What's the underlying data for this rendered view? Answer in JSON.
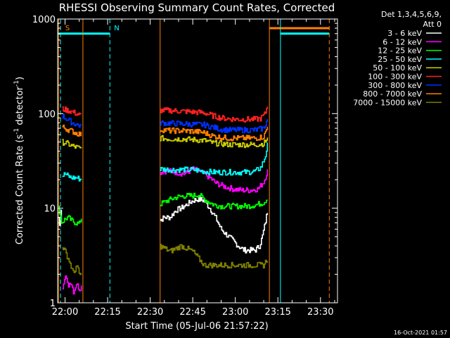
{
  "chart_data": {
    "type": "line",
    "title": "RHESSI Observing Summary Count Rates, Corrected",
    "xlabel": "Start Time (05-Jul-06 21:57:22)",
    "ylabel_main": "Corrected Count Rate (s",
    "ylabel_sup1": "-1",
    "ylabel_mid": " detector",
    "ylabel_sup2": "-1",
    "ylabel_end": ")",
    "y_scale": "log",
    "ylim": [
      1,
      1000
    ],
    "x_unit": "minutes since 22:00",
    "xlim": [
      -2.6,
      96
    ],
    "x_ticks": [
      {
        "value": 0,
        "label": "22:00"
      },
      {
        "value": 15,
        "label": "22:15"
      },
      {
        "value": 30,
        "label": "22:30"
      },
      {
        "value": 45,
        "label": "22:45"
      },
      {
        "value": 60,
        "label": "23:00"
      },
      {
        "value": 75,
        "label": "23:15"
      },
      {
        "value": 90,
        "label": "23:30"
      }
    ],
    "y_ticks": [
      {
        "value": 1,
        "label": "1"
      },
      {
        "value": 10,
        "label": "10"
      },
      {
        "value": 100,
        "label": "100"
      },
      {
        "value": 1000,
        "label": "1000"
      }
    ],
    "legend_header": [
      "Det 1,3,4,5,6,9,",
      "Att 0"
    ],
    "legend_position": "top-right, outside plot",
    "timestamp": "16-Oct-2021 01:57",
    "markers": [
      {
        "label": "S",
        "x": -1.4,
        "color": "#ff8000"
      },
      {
        "label": "N",
        "x": 15.8,
        "color": "#00ffff"
      }
    ],
    "vlines": [
      {
        "x": -2.3,
        "color": "#ff8000",
        "style": "solid"
      },
      {
        "x": -1.6,
        "color": "#00ffff",
        "style": "dashed"
      },
      {
        "x": 15.8,
        "color": "#00ffff",
        "style": "dashed"
      },
      {
        "x": 6.3,
        "color": "#ff8000",
        "style": "solid"
      },
      {
        "x": 33.5,
        "color": "#ff8000",
        "style": "solid"
      },
      {
        "x": 72.0,
        "color": "#ff8000",
        "style": "solid"
      },
      {
        "x": 75.9,
        "color": "#00ffff",
        "style": "solid"
      },
      {
        "x": 93.1,
        "color": "#ff8000",
        "style": "dashed"
      }
    ],
    "hbars": [
      {
        "x0": -2.6,
        "x1": 15.8,
        "y": 700,
        "color": "#00ffff"
      },
      {
        "x0": 75.9,
        "x1": 93.1,
        "y": 700,
        "color": "#00ffff"
      },
      {
        "x0": 72.0,
        "x1": 93.1,
        "y": 800,
        "color": "#ff8000"
      }
    ],
    "series": [
      {
        "name": "3 - 6 keV",
        "color": "#ffffff",
        "segments": [
          {
            "x": [
              -2.3,
              -1.8,
              -1.4,
              -1.0
            ],
            "y": [
              8,
              6,
              10,
              10
            ]
          },
          {
            "x": [
              33.5,
              35,
              37,
              39,
              41,
              43,
              45,
              47,
              49,
              51,
              53,
              55,
              57,
              59,
              61,
              63,
              65,
              67,
              68.5,
              69.5,
              70.5,
              71.5
            ],
            "y": [
              7.5,
              8,
              8,
              9.5,
              10,
              11,
              12,
              12.5,
              12,
              10,
              8,
              6,
              5.2,
              4.6,
              4,
              3.6,
              3.6,
              3.6,
              4,
              5,
              7,
              10
            ]
          }
        ]
      },
      {
        "name": "6 - 12 keV",
        "color": "#ff00ff",
        "segments": [
          {
            "x": [
              -0.9,
              0,
              1,
              2,
              3,
              4,
              5,
              5.8
            ],
            "y": [
              1.5,
              2,
              1.5,
              1.7,
              1.3,
              1.6,
              1.4,
              1.5
            ]
          },
          {
            "x": [
              33.5,
              36,
              39,
              42,
              45,
              48,
              51,
              53,
              56,
              59,
              62,
              65,
              68,
              70,
              71.5
            ],
            "y": [
              24,
              25,
              24,
              23,
              26,
              24,
              21,
              18.5,
              17,
              16,
              15.5,
              15.5,
              16,
              19,
              26
            ]
          }
        ]
      },
      {
        "name": "12 - 25 keV",
        "color": "#00ff00",
        "segments": [
          {
            "x": [
              -2.3,
              -1.8,
              -1.2,
              -0.4,
              1,
              2,
              3,
              4,
              5,
              5.8
            ],
            "y": [
              10,
              9,
              7,
              7.5,
              8,
              7.5,
              7.2,
              7,
              6.8,
              8
            ]
          },
          {
            "x": [
              33.5,
              36,
              39,
              42,
              45,
              47,
              49,
              52,
              55,
              58,
              61,
              64,
              67,
              70,
              71.5
            ],
            "y": [
              11,
              12,
              13,
              13.5,
              13.5,
              14,
              12.5,
              11,
              10.5,
              10.5,
              10.5,
              10.5,
              10.8,
              11.5,
              13
            ]
          }
        ]
      },
      {
        "name": "25 - 50 keV",
        "color": "#00ffff",
        "segments": [
          {
            "x": [
              -1.0,
              0,
              1,
              2,
              3,
              4,
              5,
              5.8
            ],
            "y": [
              22,
              23,
              22,
              21,
              21,
              21,
              20.5,
              20
            ]
          },
          {
            "x": [
              33.5,
              37,
              41,
              45,
              49,
              52,
              55,
              58,
              61,
              64,
              67,
              69,
              70.5,
              71.5
            ],
            "y": [
              26,
              25.5,
              25.5,
              25.5,
              24.5,
              24,
              24,
              24,
              24,
              24,
              24.5,
              27,
              35,
              50
            ]
          }
        ]
      },
      {
        "name": "50 - 100 keV",
        "color": "#cccc00",
        "segments": [
          {
            "x": [
              -1.0,
              0,
              1,
              2,
              3,
              4,
              5,
              5.8
            ],
            "y": [
              50,
              49,
              48,
              46,
              45,
              44,
              43,
              42
            ]
          },
          {
            "x": [
              33.5,
              37,
              41,
              45,
              49,
              52,
              55,
              58,
              61,
              64,
              67,
              70,
              71.5
            ],
            "y": [
              55,
              54,
              54,
              53,
              52,
              49,
              48,
              47,
              47,
              47,
              47,
              48,
              56
            ]
          }
        ]
      },
      {
        "name": "100 - 300 keV",
        "color": "#ff2020",
        "segments": [
          {
            "x": [
              -1.0,
              0,
              1,
              2,
              3,
              4,
              5,
              5.8
            ],
            "y": [
              112,
              110,
              108,
              106,
              103,
              100,
              97,
              94
            ]
          },
          {
            "x": [
              33.5,
              37,
              41,
              45,
              49,
              52,
              55,
              58,
              61,
              64,
              67,
              69,
              70.5,
              71.5
            ],
            "y": [
              108,
              108,
              106,
              104,
              102,
              95,
              90,
              88,
              87,
              87,
              87,
              89,
              100,
              130
            ]
          }
        ]
      },
      {
        "name": "300 - 800 keV",
        "color": "#0030ff",
        "segments": [
          {
            "x": [
              -1.0,
              0,
              1,
              2,
              3,
              4,
              5,
              5.8
            ],
            "y": [
              95,
              90,
              86,
              82,
              79,
              77,
              75,
              73
            ]
          },
          {
            "x": [
              33.5,
              37,
              41,
              45,
              49,
              52,
              55,
              58,
              61,
              64,
              67,
              70,
              71.5
            ],
            "y": [
              80,
              79,
              78,
              77,
              76,
              72,
              68,
              67,
              67,
              67,
              67,
              70,
              90
            ]
          }
        ]
      },
      {
        "name": "800 - 7000 keV",
        "color": "#ff8000",
        "segments": [
          {
            "x": [
              -1.0,
              0,
              1,
              2,
              3,
              4,
              5,
              5.8
            ],
            "y": [
              72,
              70,
              68,
              66,
              64,
              62,
              61,
              60
            ]
          },
          {
            "x": [
              33.5,
              37,
              41,
              45,
              49,
              52,
              55,
              58,
              61,
              64,
              67,
              70,
              71.5
            ],
            "y": [
              68,
              66,
              66,
              65,
              63,
              58,
              56,
              55,
              55,
              55,
              55,
              57,
              75
            ]
          }
        ]
      },
      {
        "name": "7000 - 15000 keV",
        "color": "#808000",
        "segments": [
          {
            "x": [
              -1.0,
              0,
              1,
              2,
              3,
              4,
              5,
              5.8
            ],
            "y": [
              4,
              3.5,
              3,
              2.5,
              2,
              2.5,
              2,
              2
            ]
          },
          {
            "x": [
              33.5,
              37,
              41,
              45,
              49,
              52,
              55,
              58,
              61,
              64,
              67,
              70,
              71.5
            ],
            "y": [
              4,
              3.5,
              4,
              3.5,
              2.5,
              2.5,
              2.5,
              2.5,
              2.5,
              2.5,
              2.5,
              2.5,
              3
            ]
          }
        ]
      }
    ]
  }
}
